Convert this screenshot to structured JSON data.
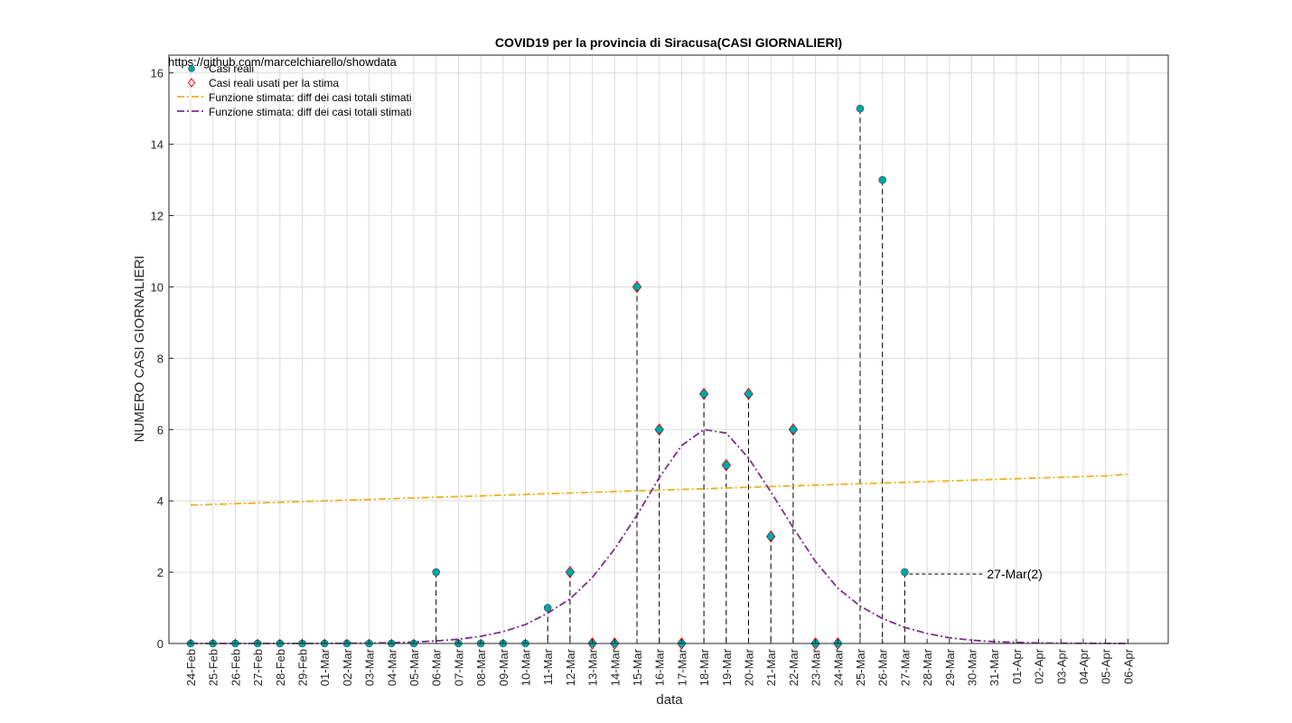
{
  "source_text": "https://github.com/marcelchiarello/showdata",
  "chart_data": {
    "type": "scatter",
    "title": "COVID19 per la provincia di Siracusa(CASI GIORNALIERI)",
    "xlabel": "data",
    "ylabel": "NUMERO CASI GIORNALIERI",
    "ylim": [
      0,
      16.5
    ],
    "yticks": [
      0,
      2,
      4,
      6,
      8,
      10,
      12,
      14,
      16
    ],
    "grid": true,
    "legend_position": "top-left",
    "x": [
      "24-Feb",
      "25-Feb",
      "26-Feb",
      "27-Feb",
      "28-Feb",
      "29-Feb",
      "01-Mar",
      "02-Mar",
      "03-Mar",
      "04-Mar",
      "05-Mar",
      "06-Mar",
      "07-Mar",
      "08-Mar",
      "09-Mar",
      "10-Mar",
      "11-Mar",
      "12-Mar",
      "13-Mar",
      "14-Mar",
      "15-Mar",
      "16-Mar",
      "17-Mar",
      "18-Mar",
      "19-Mar",
      "20-Mar",
      "21-Mar",
      "22-Mar",
      "23-Mar",
      "24-Mar",
      "25-Mar",
      "26-Mar",
      "27-Mar",
      "28-Mar",
      "29-Mar",
      "30-Mar",
      "31-Mar",
      "01-Apr",
      "02-Apr",
      "03-Apr",
      "04-Apr",
      "05-Apr",
      "06-Apr"
    ],
    "series": [
      {
        "name": "Casi reali",
        "marker": "circle",
        "color": "#00a5a5",
        "values": [
          0,
          0,
          0,
          0,
          0,
          0,
          0,
          0,
          0,
          0,
          0,
          2,
          0,
          0,
          0,
          0,
          1,
          2,
          0,
          0,
          10,
          6,
          0,
          7,
          5,
          7,
          3,
          6,
          0,
          0,
          15,
          13,
          2
        ]
      },
      {
        "name": "Casi reali usati per la stima",
        "marker": "diamond",
        "color": "#ff0000",
        "x": [
          "12-Mar",
          "13-Mar",
          "14-Mar",
          "15-Mar",
          "16-Mar",
          "17-Mar",
          "18-Mar",
          "19-Mar",
          "20-Mar",
          "21-Mar",
          "22-Mar",
          "23-Mar",
          "24-Mar"
        ],
        "values": [
          2,
          0,
          0,
          10,
          6,
          0,
          7,
          5,
          7,
          3,
          6,
          0,
          0
        ]
      },
      {
        "name": "Funzione stimata: diff dei casi totali stimati",
        "line": "dash-dot",
        "color": "#edb120",
        "values": [
          3.88,
          3.9,
          3.92,
          3.94,
          3.96,
          3.98,
          4.0,
          4.02,
          4.04,
          4.06,
          4.08,
          4.1,
          4.12,
          4.14,
          4.16,
          4.18,
          4.2,
          4.22,
          4.24,
          4.26,
          4.28,
          4.3,
          4.32,
          4.34,
          4.36,
          4.38,
          4.4,
          4.42,
          4.44,
          4.46,
          4.48,
          4.5,
          4.52,
          4.54,
          4.56,
          4.58,
          4.6,
          4.62,
          4.64,
          4.66,
          4.68,
          4.7,
          4.75
        ]
      },
      {
        "name": "Funzione stimata: diff dei casi totali stimati",
        "line": "dash-dot",
        "color": "#7e2f8e",
        "values": [
          0,
          0,
          0,
          0,
          0,
          0,
          0,
          0.005,
          0.01,
          0.02,
          0.04,
          0.07,
          0.12,
          0.2,
          0.33,
          0.53,
          0.85,
          1.25,
          1.85,
          2.65,
          3.6,
          4.65,
          5.55,
          6.0,
          5.9,
          5.2,
          4.25,
          3.25,
          2.3,
          1.55,
          1.05,
          0.7,
          0.45,
          0.28,
          0.16,
          0.09,
          0.05,
          0.03,
          0.015,
          0.008,
          0.004,
          0.002,
          0
        ]
      }
    ],
    "annotation": {
      "text": "27-Mar(2)",
      "x": "27-Mar",
      "y": 2
    }
  }
}
